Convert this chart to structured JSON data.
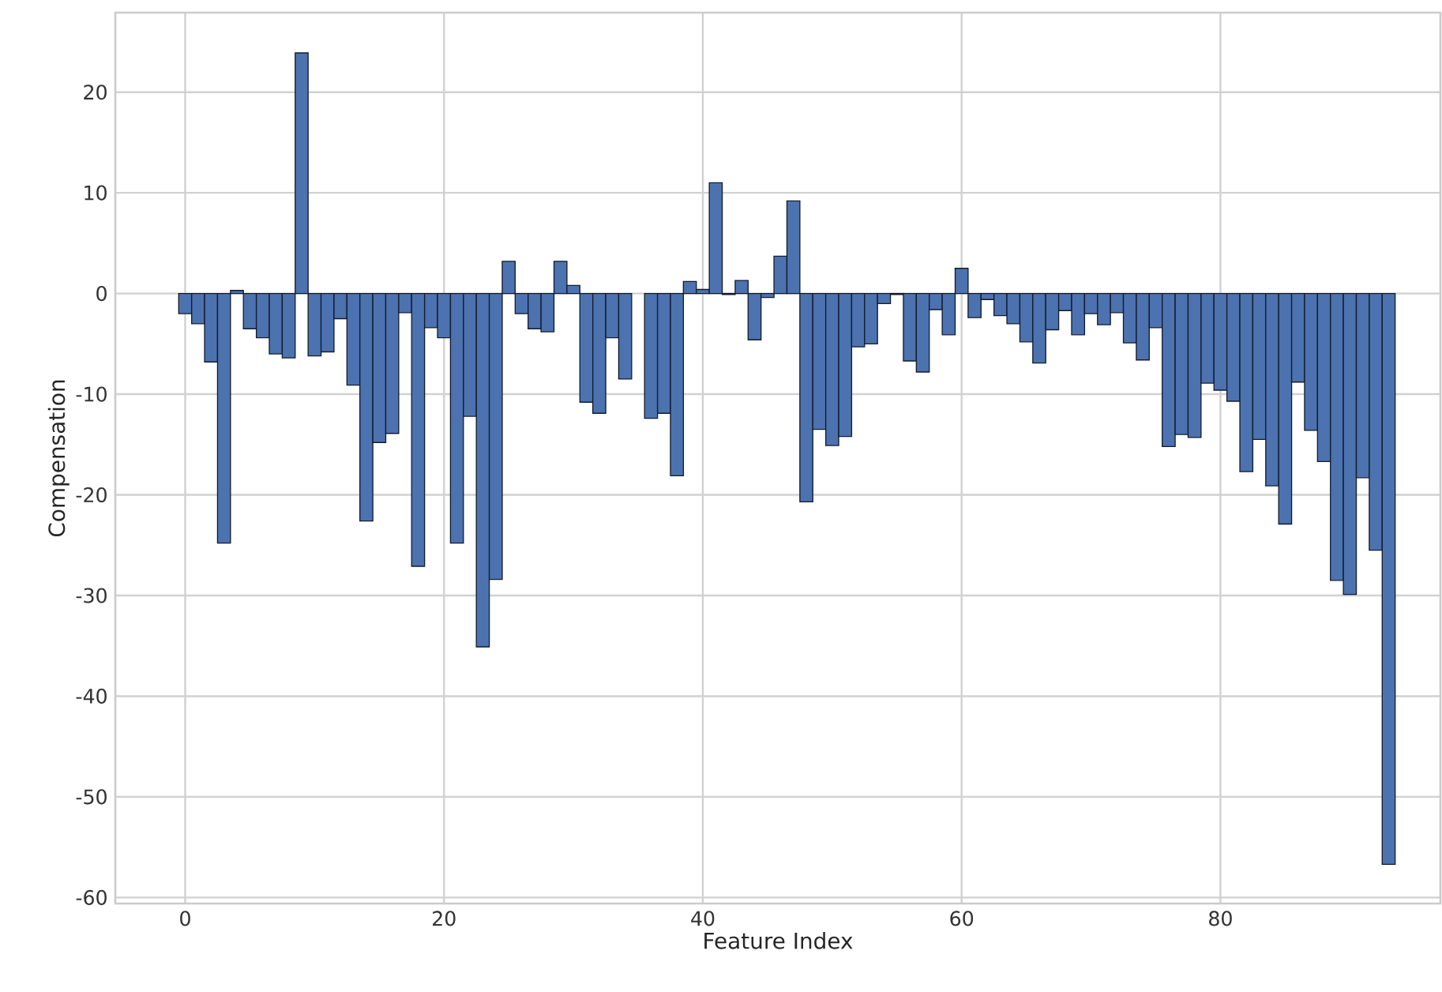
{
  "chart_data": {
    "type": "bar",
    "xlabel": "Feature Index",
    "ylabel": "Compensation",
    "x": [
      0,
      1,
      2,
      3,
      4,
      5,
      6,
      7,
      8,
      9,
      10,
      11,
      12,
      13,
      14,
      15,
      16,
      17,
      18,
      19,
      20,
      21,
      22,
      23,
      24,
      25,
      26,
      27,
      28,
      29,
      30,
      31,
      32,
      33,
      34,
      35,
      36,
      37,
      38,
      39,
      40,
      41,
      42,
      43,
      44,
      45,
      46,
      47,
      48,
      49,
      50,
      51,
      52,
      53,
      54,
      55,
      56,
      57,
      58,
      59,
      60,
      61,
      62,
      63,
      64,
      65,
      66,
      67,
      68,
      69,
      70,
      71,
      72,
      73,
      74,
      75,
      76,
      77,
      78,
      79,
      80,
      81,
      82,
      83,
      84,
      85,
      86,
      87,
      88,
      89,
      90,
      91,
      92,
      93
    ],
    "values": [
      -2,
      -3,
      -6.8,
      -24.8,
      0.3,
      -3.5,
      -4.4,
      -6,
      -6.4,
      23.9,
      -6.2,
      -5.8,
      -2.5,
      -9.1,
      -22.6,
      -14.8,
      -13.9,
      -1.9,
      -27.1,
      -3.4,
      -4.4,
      -24.8,
      -12.2,
      -35.1,
      -28.4,
      3.2,
      -2,
      -3.5,
      -3.8,
      3.2,
      0.8,
      -10.8,
      -11.9,
      -4.4,
      -8.5,
      null,
      -12.4,
      -11.9,
      -18.1,
      1.2,
      0.4,
      11,
      -0.1,
      1.3,
      -4.6,
      -0.4,
      3.7,
      9.2,
      -20.7,
      -13.5,
      -15.1,
      -14.2,
      -5.3,
      -5,
      -1,
      -0.1,
      -6.7,
      -7.8,
      -1.6,
      -4.1,
      2.5,
      -2.4,
      -0.6,
      -2.2,
      -3,
      -4.8,
      -6.9,
      -3.6,
      -1.7,
      -4.1,
      -2,
      -3.1,
      -1.9,
      -4.9,
      -6.6,
      -3.4,
      -15.2,
      -14,
      -14.3,
      -8.9,
      -9.6,
      -10.7,
      -17.7,
      -14.5,
      -19.1,
      -22.9,
      -8.8,
      -13.6,
      -16.7,
      -28.5,
      -29.9,
      -18.3,
      -25.5,
      -56.7
    ],
    "color": "#4c72b0",
    "xlim": [
      -5.4,
      97
    ],
    "ylim": [
      -60.6,
      27.9
    ],
    "xticks": [
      0,
      20,
      40,
      60,
      80
    ],
    "yticks": [
      -60,
      -50,
      -40,
      -30,
      -20,
      -10,
      0,
      10,
      20
    ],
    "grid": true
  }
}
